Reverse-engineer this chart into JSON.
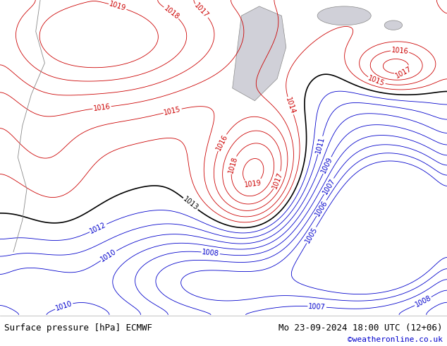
{
  "title_left": "Surface pressure [hPa] ECMWF",
  "title_right": "Mo 23-09-2024 18:00 UTC (12+06)",
  "copyright": "©weatheronline.co.uk",
  "land_color": "#a8d580",
  "sea_color": "#c8c8c8",
  "fig_width": 6.34,
  "fig_height": 4.9,
  "dpi": 100,
  "bottom_bar_color": "#ffffff",
  "bottom_text_color": "#000000",
  "copyright_color": "#0000cc",
  "title_fontsize": 9,
  "copyright_fontsize": 8,
  "red_contour_color": "#cc0000",
  "blue_contour_color": "#0000cc",
  "black_contour_color": "#000000",
  "label_fontsize": 7,
  "contour_lw_thin": 0.6,
  "contour_lw_thick": 1.2
}
